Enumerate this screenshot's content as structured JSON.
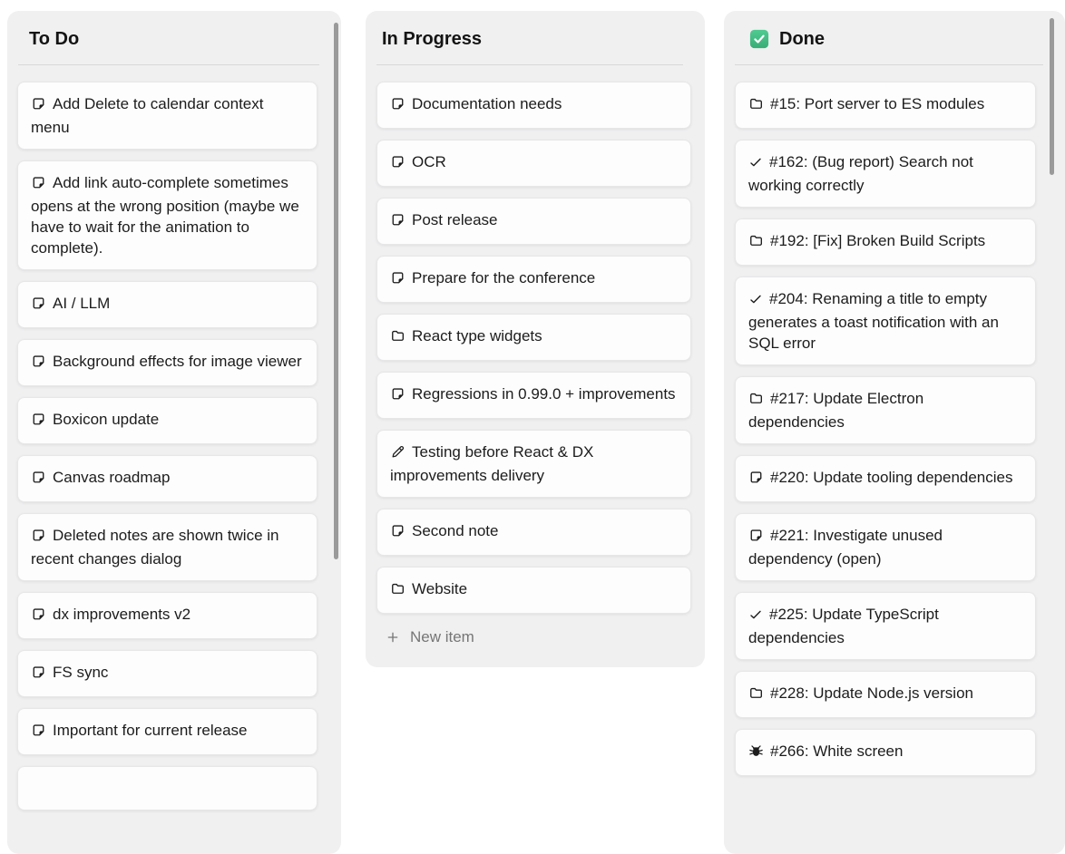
{
  "board": {
    "colors": {
      "done_check_top": "#50cb92",
      "done_check_bottom": "#39ad76",
      "column_bg": "#f0f0f1",
      "card_bg": "#fdfdfd",
      "scrollbar": "#9a9a9b"
    },
    "columns": [
      {
        "id": "todo",
        "title": "To Do",
        "header_icon": null,
        "scrollbar": true,
        "cards": [
          {
            "icon": "note",
            "text": "Add Delete to calendar context menu"
          },
          {
            "icon": "note",
            "text": "Add link auto-complete sometimes opens at the wrong position (maybe we have to wait for the animation to complete)."
          },
          {
            "icon": "note",
            "text": "AI / LLM"
          },
          {
            "icon": "note",
            "text": "Background effects for image viewer"
          },
          {
            "icon": "note",
            "text": "Boxicon update"
          },
          {
            "icon": "note",
            "text": "Canvas roadmap"
          },
          {
            "icon": "note",
            "text": "Deleted notes are shown twice in recent changes dialog"
          },
          {
            "icon": "note",
            "text": "dx improvements v2"
          },
          {
            "icon": "note",
            "text": "FS sync"
          },
          {
            "icon": "note",
            "text": "Important for current release"
          },
          {
            "icon": "note",
            "text": ""
          }
        ]
      },
      {
        "id": "inprogress",
        "title": "In Progress",
        "header_icon": null,
        "scrollbar": false,
        "footer": {
          "icon": "plus",
          "label": "New item"
        },
        "cards": [
          {
            "icon": "note",
            "text": "Documentation needs"
          },
          {
            "icon": "note",
            "text": "OCR"
          },
          {
            "icon": "note",
            "text": "Post release"
          },
          {
            "icon": "note",
            "text": "Prepare for the conference"
          },
          {
            "icon": "folder",
            "text": "React type widgets"
          },
          {
            "icon": "note",
            "text": "Regressions in 0.99.0 + improvements"
          },
          {
            "icon": "pencil",
            "text": "Testing before React & DX improvements delivery"
          },
          {
            "icon": "note",
            "text": "Second note"
          },
          {
            "icon": "folder",
            "text": "Website"
          }
        ]
      },
      {
        "id": "done",
        "title": "Done",
        "header_icon": "green-checkbox",
        "scrollbar": true,
        "cards": [
          {
            "icon": "folder",
            "text": "#15: Port server to ES modules"
          },
          {
            "icon": "check",
            "text": "#162: (Bug report) Search not working correctly"
          },
          {
            "icon": "folder",
            "text": "#192: [Fix] Broken Build Scripts"
          },
          {
            "icon": "check",
            "text": "#204: Renaming a title to empty generates a toast notification with an SQL error"
          },
          {
            "icon": "folder",
            "text": "#217: Update Electron dependencies"
          },
          {
            "icon": "note",
            "text": "#220: Update tooling dependencies"
          },
          {
            "icon": "note",
            "text": "#221: Investigate unused dependency (open)"
          },
          {
            "icon": "check",
            "text": "#225: Update TypeScript dependencies"
          },
          {
            "icon": "folder",
            "text": "#228: Update Node.js version"
          },
          {
            "icon": "bug",
            "text": "#266: White screen"
          }
        ]
      }
    ]
  }
}
